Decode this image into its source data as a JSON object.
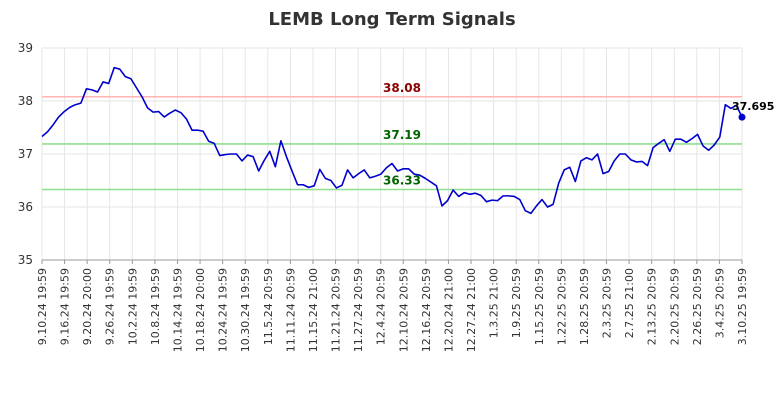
{
  "chart_data": {
    "type": "line",
    "title": "LEMB Long Term Signals",
    "xlabel": "",
    "ylabel": "",
    "ylim": [
      35,
      39
    ],
    "yticks": [
      "35",
      "36",
      "37",
      "38",
      "39"
    ],
    "grid": true,
    "x_tick_labels": [
      "9.10.24 19:59",
      "9.16.24 19:59",
      "9.20.24 20:00",
      "9.26.24 19:59",
      "10.2.24 19:59",
      "10.8.24 19:59",
      "10.14.24 19:59",
      "10.18.24 20:00",
      "10.24.24 19:59",
      "10.30.24 19:59",
      "11.5.24 20:59",
      "11.11.24 20:59",
      "11.15.24 21:00",
      "11.21.24 20:59",
      "11.27.24 20:59",
      "12.4.24 20:59",
      "12.10.24 20:59",
      "12.16.24 20:59",
      "12.20.24 21:00",
      "12.27.24 21:00",
      "1.3.25 21:00",
      "1.9.25 20:59",
      "1.15.25 20:59",
      "1.22.25 20:59",
      "1.28.25 20:59",
      "2.3.25 20:59",
      "2.7.25 21:00",
      "2.13.25 20:59",
      "2.20.25 20:59",
      "2.26.25 20:59",
      "3.4.25 20:59",
      "3.10.25 19:59"
    ],
    "reference_lines": [
      {
        "value": 38.08,
        "label": "38.08",
        "color": "#ffb3b3",
        "label_color": "#8b0000"
      },
      {
        "value": 37.19,
        "label": "37.19",
        "color": "#90e090",
        "label_color": "#006400"
      },
      {
        "value": 36.33,
        "label": "36.33",
        "color": "#90e090",
        "label_color": "#006400"
      }
    ],
    "last_value_label": "37.695",
    "series": [
      {
        "color": "#0000cc",
        "values": [
          37.33,
          37.42,
          37.55,
          37.7,
          37.8,
          37.88,
          37.93,
          37.96,
          38.23,
          38.21,
          38.17,
          38.36,
          38.33,
          38.63,
          38.6,
          38.46,
          38.42,
          38.25,
          38.08,
          37.87,
          37.79,
          37.8,
          37.7,
          37.77,
          37.83,
          37.78,
          37.66,
          37.45,
          37.45,
          37.43,
          37.24,
          37.2,
          36.97,
          36.99,
          37.0,
          37.0,
          36.87,
          36.98,
          36.95,
          36.68,
          36.88,
          37.05,
          36.76,
          37.25,
          36.95,
          36.68,
          36.42,
          36.42,
          36.37,
          36.4,
          36.71,
          36.54,
          36.5,
          36.36,
          36.41,
          36.7,
          36.55,
          36.63,
          36.7,
          36.55,
          36.58,
          36.62,
          36.74,
          36.82,
          36.68,
          36.72,
          36.72,
          36.62,
          36.6,
          36.54,
          36.47,
          36.4,
          36.02,
          36.12,
          36.32,
          36.2,
          36.27,
          36.24,
          36.26,
          36.22,
          36.1,
          36.13,
          36.12,
          36.21,
          36.21,
          36.2,
          36.14,
          35.93,
          35.88,
          36.02,
          36.14,
          36.0,
          36.05,
          36.45,
          36.7,
          36.75,
          36.48,
          36.87,
          36.93,
          36.89,
          37.0,
          36.63,
          36.67,
          36.87,
          37.0,
          37.0,
          36.89,
          36.85,
          36.86,
          36.78,
          37.12,
          37.2,
          37.27,
          37.05,
          37.28,
          37.28,
          37.22,
          37.29,
          37.37,
          37.15,
          37.07,
          37.17,
          37.32,
          37.93,
          37.86,
          37.92,
          37.695
        ]
      }
    ]
  }
}
